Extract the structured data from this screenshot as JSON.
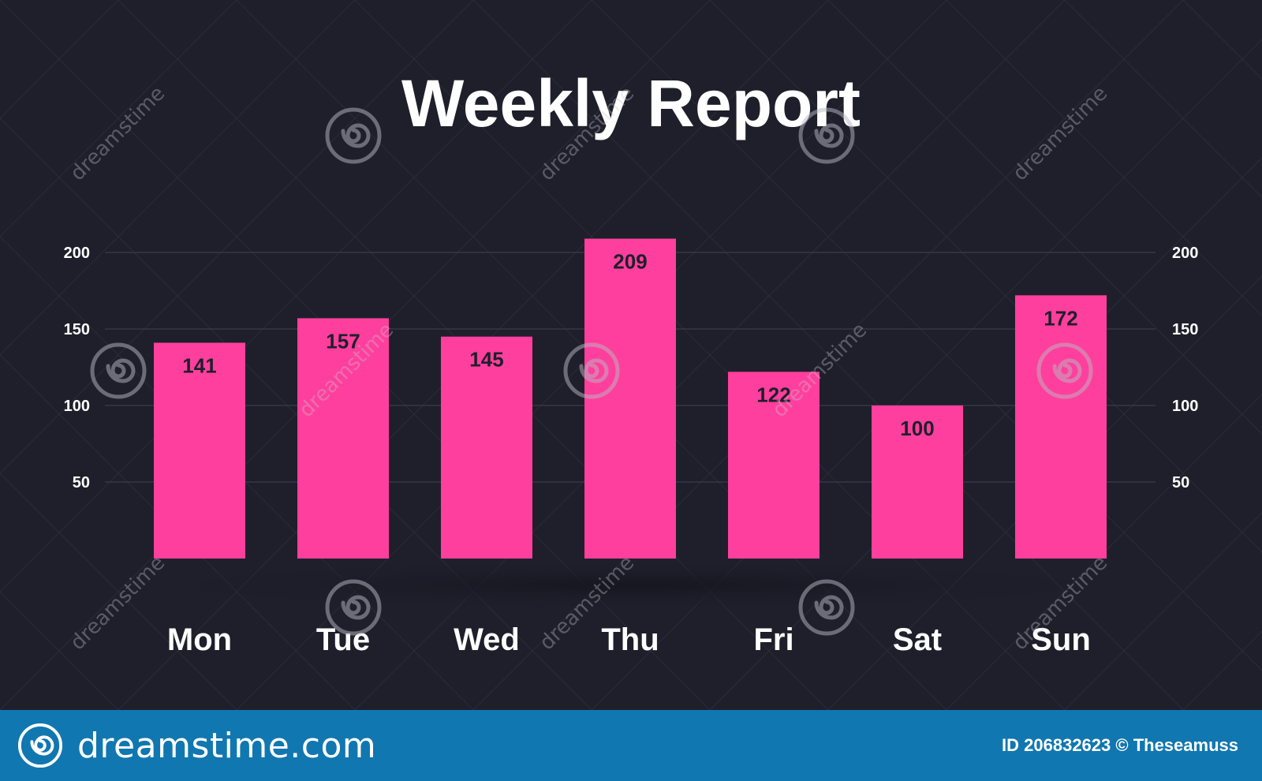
{
  "chart_data": {
    "type": "bar",
    "title": "Weekly Report",
    "categories": [
      "Mon",
      "Tue",
      "Wed",
      "Thu",
      "Fri",
      "Sat",
      "Sun"
    ],
    "values": [
      141,
      157,
      145,
      209,
      122,
      100,
      172
    ],
    "data_labels": [
      "141",
      "157",
      "145",
      "209",
      "122",
      "100",
      "172"
    ],
    "y_ticks": [
      50,
      100,
      150,
      200
    ],
    "y_tick_labels": [
      "50",
      "100",
      "150",
      "200"
    ],
    "ylim": [
      0,
      200
    ],
    "grid": true,
    "y_axis_labels_both_sides": true,
    "legend": "none",
    "bar_color": "#ff3f9d",
    "background_color": "#1f1f2b"
  },
  "footer": {
    "brand": "dreamstime.com",
    "credit": "ID 206832623 © Theseamuss",
    "logo_icon": "spiral-icon",
    "background_color": "#1177b0"
  },
  "watermark": {
    "text": "dreamstime",
    "icon": "spiral-icon"
  }
}
